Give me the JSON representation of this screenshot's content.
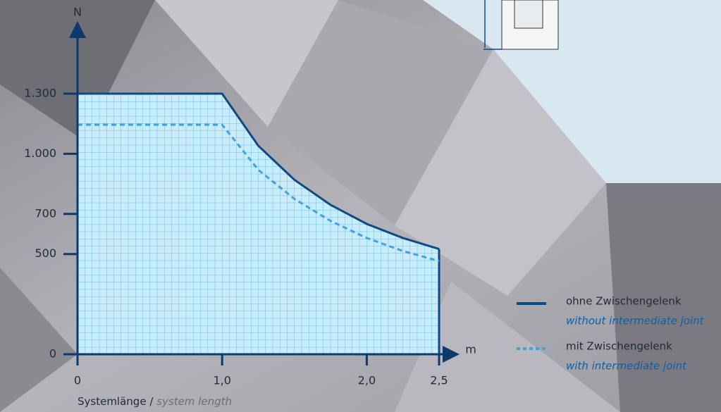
{
  "chart_data": {
    "type": "line",
    "y_axis_label": "N",
    "x_axis_label": "m",
    "x_title": "Systemlänge",
    "x_title_sep": "/",
    "x_title_en": "system length",
    "x": [
      0,
      1.0,
      1.25,
      1.5,
      1.75,
      2.0,
      2.25,
      2.5
    ],
    "series": [
      {
        "name": "ohne Zwischengelenk",
        "name_en": "without intermediate joint",
        "color": "#0d4a86",
        "style": "solid",
        "values": [
          1300,
          1300,
          1040,
          870,
          745,
          650,
          580,
          525
        ]
      },
      {
        "name": "mit Zwischengelenk",
        "name_en": "with intermediate joint",
        "color": "#3fa3e3",
        "style": "dashed",
        "values": [
          1145,
          1145,
          920,
          775,
          665,
          580,
          515,
          465
        ]
      }
    ],
    "xlim": [
      0,
      2.5
    ],
    "ylim": [
      0,
      1300
    ],
    "xticks": [
      0,
      {
        "value": 1.0,
        "label": "1,0"
      },
      {
        "value": 2.0,
        "label": "2,0"
      },
      {
        "value": 2.5,
        "label": "2,5"
      }
    ],
    "yticks": [
      0,
      500,
      700,
      {
        "value": 1000,
        "label": "1.000"
      },
      {
        "value": 1300,
        "label": "1.300"
      }
    ],
    "fill": "#c9ecfb",
    "grid_color": "#56b6ec"
  }
}
